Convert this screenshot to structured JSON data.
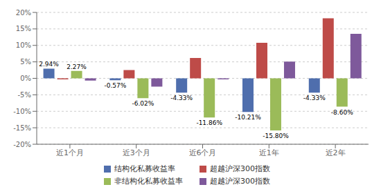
{
  "chart_data": {
    "type": "bar",
    "categories": [
      "近1个月",
      "近3个月",
      "近6个月",
      "近1年",
      "近2年"
    ],
    "series": [
      {
        "name": "结构化私募收益率",
        "color": "#4F6EAD",
        "values": [
          2.94,
          -0.57,
          -4.33,
          -10.21,
          -4.33
        ],
        "value_labels": [
          "2.94%",
          "-0.57%",
          "-4.33%",
          "-10.21%",
          "-4.33%"
        ]
      },
      {
        "name": "超越沪深300指数",
        "color": "#BE4B48",
        "values": [
          -0.3,
          2.5,
          6.2,
          10.8,
          18.2
        ]
      },
      {
        "name": "非结构化私募收益率",
        "color": "#9BBB59",
        "values": [
          2.27,
          -6.02,
          -11.86,
          -15.8,
          -8.6
        ],
        "value_labels": [
          "2.27%",
          "-6.02%",
          "-11.86%",
          "-15.80%",
          "-8.60%"
        ]
      },
      {
        "name": "超越沪深300指数",
        "color": "#7E599B",
        "values": [
          -0.7,
          -2.5,
          -0.3,
          5.1,
          13.5
        ]
      }
    ],
    "ylim": [
      -20,
      20
    ],
    "yticks": [
      {
        "value": -20,
        "label": "-20%"
      },
      {
        "value": -15,
        "label": "-15%"
      },
      {
        "value": -10,
        "label": "-10%"
      },
      {
        "value": -5,
        "label": "-5%"
      },
      {
        "value": 0,
        "label": "0%"
      },
      {
        "value": 5,
        "label": "5%"
      },
      {
        "value": 10,
        "label": "10%"
      },
      {
        "value": 15,
        "label": "15%"
      },
      {
        "value": 20,
        "label": "20%"
      }
    ],
    "grid": true,
    "legend": "bottom"
  }
}
